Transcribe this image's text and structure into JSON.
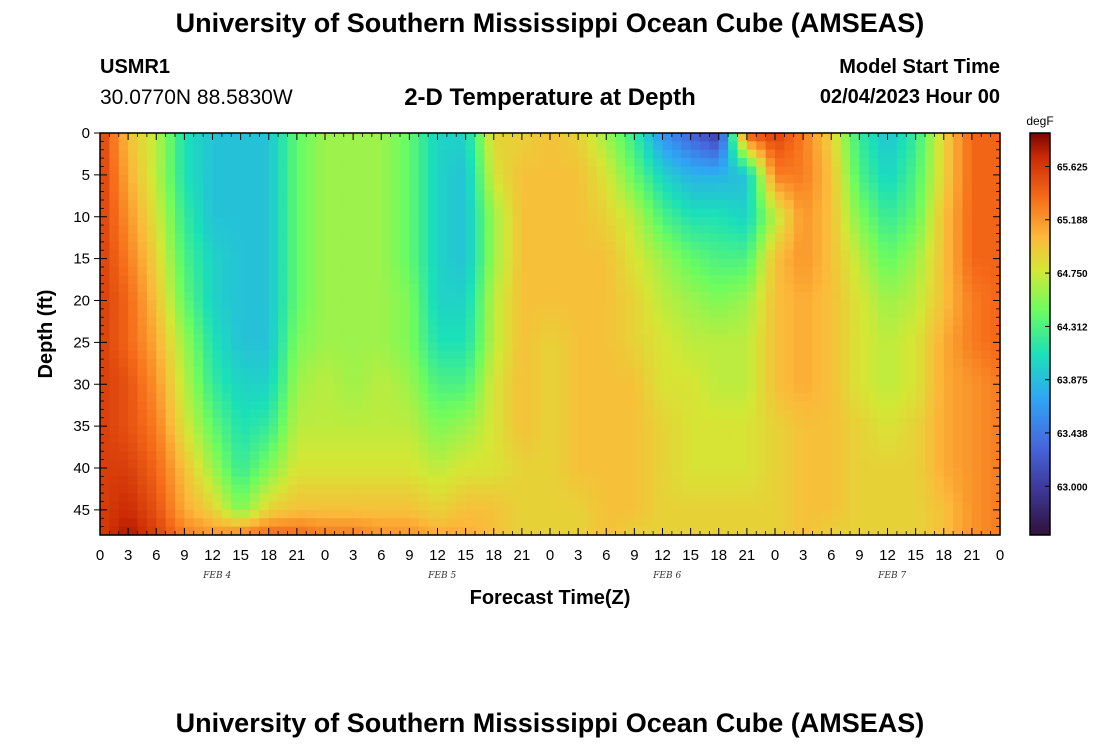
{
  "page": {
    "title": "University of Southern Mississippi Ocean Cube (AMSEAS)",
    "station_id": "USMR1",
    "coords": "30.0770N  88.5830W",
    "plot_title": "2-D Temperature at Depth",
    "model_label": "Model Start Time",
    "model_date": "02/04/2023 Hour 00",
    "footer_title": "University of Southern Mississippi Ocean Cube (AMSEAS)"
  },
  "chart_data": {
    "type": "heatmap",
    "title": "2-D Temperature at Depth",
    "xlabel": "Forecast Time(Z)",
    "ylabel": "Depth (ft)",
    "units": "degF",
    "x_range_hours": [
      0,
      96
    ],
    "y_range_ft": [
      0,
      48
    ],
    "y_inverted": true,
    "x_tick_labels": [
      "0",
      "3",
      "6",
      "9",
      "12",
      "15",
      "18",
      "21",
      "0",
      "3",
      "6",
      "9",
      "12",
      "15",
      "18",
      "21",
      "0",
      "3",
      "6",
      "9",
      "12",
      "15",
      "18",
      "21",
      "0",
      "3",
      "6",
      "9",
      "12",
      "15",
      "18",
      "21",
      "0"
    ],
    "day_labels": [
      "FEB 4",
      "FEB 5",
      "FEB 6",
      "FEB 7"
    ],
    "y_ticks": [
      0,
      5,
      10,
      15,
      20,
      25,
      30,
      35,
      40,
      45
    ],
    "colorbar": {
      "min": 62.6,
      "max": 65.9,
      "ticks": [
        "63.000",
        "63.438",
        "63.875",
        "64.312",
        "64.750",
        "65.188",
        "65.625"
      ]
    },
    "grid_x_hours": [
      0,
      3,
      6,
      9,
      12,
      15,
      18,
      21,
      24,
      27,
      30,
      33,
      36,
      39,
      42,
      45,
      48,
      51,
      54,
      57,
      60,
      63,
      66,
      69,
      72,
      75,
      78,
      81,
      84,
      87,
      90,
      93,
      96
    ],
    "grid_depth_ft": [
      0,
      5,
      10,
      15,
      20,
      25,
      30,
      35,
      40,
      45,
      48
    ],
    "temperature_degF": [
      [
        65.6,
        65.6,
        65.6,
        65.6,
        65.6,
        65.6,
        65.6,
        65.6,
        65.6,
        65.6,
        65.6
      ],
      [
        65.0,
        65.1,
        65.2,
        65.3,
        65.4,
        65.4,
        65.5,
        65.5,
        65.6,
        65.7,
        65.8
      ],
      [
        64.7,
        64.7,
        64.8,
        64.9,
        65.0,
        65.1,
        65.2,
        65.3,
        65.4,
        65.5,
        65.6
      ],
      [
        64.1,
        64.1,
        64.2,
        64.3,
        64.4,
        64.6,
        64.7,
        64.8,
        65.0,
        65.1,
        65.3
      ],
      [
        63.9,
        63.9,
        63.9,
        64.0,
        64.0,
        64.1,
        64.2,
        64.4,
        64.6,
        64.9,
        65.2
      ],
      [
        63.9,
        63.9,
        63.9,
        63.9,
        63.9,
        63.9,
        64.0,
        64.1,
        64.2,
        64.5,
        65.3
      ],
      [
        63.9,
        63.9,
        63.9,
        63.9,
        63.9,
        63.9,
        64.0,
        64.2,
        64.5,
        64.9,
        65.4
      ],
      [
        64.4,
        64.4,
        64.4,
        64.4,
        64.4,
        64.5,
        64.6,
        64.7,
        64.8,
        65.0,
        65.4
      ],
      [
        64.6,
        64.6,
        64.6,
        64.6,
        64.6,
        64.6,
        64.7,
        64.7,
        64.8,
        65.0,
        65.3
      ],
      [
        64.6,
        64.6,
        64.6,
        64.6,
        64.6,
        64.6,
        64.6,
        64.7,
        64.8,
        65.0,
        65.3
      ],
      [
        64.6,
        64.6,
        64.6,
        64.6,
        64.6,
        64.6,
        64.7,
        64.7,
        64.8,
        65.0,
        65.2
      ],
      [
        64.4,
        64.4,
        64.4,
        64.4,
        64.5,
        64.5,
        64.6,
        64.7,
        64.8,
        65.0,
        65.2
      ],
      [
        64.0,
        64.0,
        64.0,
        64.0,
        64.0,
        64.1,
        64.3,
        64.5,
        64.7,
        64.9,
        65.1
      ],
      [
        64.0,
        63.9,
        63.9,
        63.9,
        64.0,
        64.1,
        64.3,
        64.6,
        64.8,
        65.0,
        65.1
      ],
      [
        64.9,
        64.8,
        64.6,
        64.6,
        64.7,
        64.7,
        64.8,
        64.8,
        64.8,
        65.0,
        65.0
      ],
      [
        64.9,
        65.0,
        65.0,
        65.0,
        65.0,
        65.0,
        65.0,
        65.0,
        64.9,
        64.9,
        64.9
      ],
      [
        65.0,
        65.0,
        65.0,
        65.0,
        65.0,
        64.9,
        64.9,
        64.9,
        64.9,
        64.9,
        64.9
      ],
      [
        64.9,
        65.0,
        65.0,
        65.0,
        65.0,
        65.0,
        65.0,
        65.0,
        65.0,
        64.9,
        64.9
      ],
      [
        64.6,
        64.8,
        64.9,
        65.0,
        65.0,
        65.0,
        65.0,
        65.0,
        65.0,
        65.0,
        65.0
      ],
      [
        64.2,
        64.4,
        64.7,
        64.8,
        64.9,
        64.9,
        65.0,
        65.0,
        65.0,
        65.0,
        64.9
      ],
      [
        63.6,
        64.0,
        64.3,
        64.6,
        64.7,
        64.8,
        64.8,
        64.9,
        64.9,
        64.9,
        64.9
      ],
      [
        63.3,
        63.8,
        64.1,
        64.4,
        64.6,
        64.7,
        64.8,
        64.8,
        64.8,
        64.9,
        64.9
      ],
      [
        63.0,
        63.8,
        64.1,
        64.3,
        64.5,
        64.7,
        64.7,
        64.8,
        64.8,
        64.9,
        64.9
      ],
      [
        65.5,
        63.9,
        64.0,
        64.3,
        64.6,
        64.7,
        64.7,
        64.8,
        64.8,
        64.9,
        64.9
      ],
      [
        65.6,
        65.3,
        64.7,
        65.0,
        65.0,
        65.0,
        65.0,
        64.9,
        64.9,
        64.9,
        64.9
      ],
      [
        65.3,
        65.3,
        65.2,
        65.2,
        65.1,
        65.1,
        65.1,
        65.0,
        65.0,
        65.0,
        65.0
      ],
      [
        64.9,
        65.0,
        65.0,
        65.0,
        65.0,
        65.0,
        65.0,
        65.0,
        65.0,
        65.0,
        64.9
      ],
      [
        64.2,
        64.3,
        64.5,
        64.7,
        64.8,
        64.8,
        64.8,
        64.9,
        64.9,
        64.9,
        64.9
      ],
      [
        63.9,
        64.0,
        64.2,
        64.4,
        64.6,
        64.7,
        64.7,
        64.8,
        64.9,
        64.9,
        64.9
      ],
      [
        64.2,
        64.3,
        64.4,
        64.6,
        64.7,
        64.8,
        64.8,
        64.9,
        64.9,
        64.9,
        64.9
      ],
      [
        64.9,
        64.9,
        65.0,
        65.0,
        65.0,
        65.1,
        65.1,
        65.1,
        65.1,
        65.0,
        65.0
      ],
      [
        65.4,
        65.4,
        65.4,
        65.4,
        65.3,
        65.3,
        65.2,
        65.2,
        65.2,
        65.2,
        65.2
      ],
      [
        65.4,
        65.4,
        65.4,
        65.4,
        65.4,
        65.4,
        65.3,
        65.3,
        65.3,
        65.3,
        65.3
      ]
    ]
  }
}
